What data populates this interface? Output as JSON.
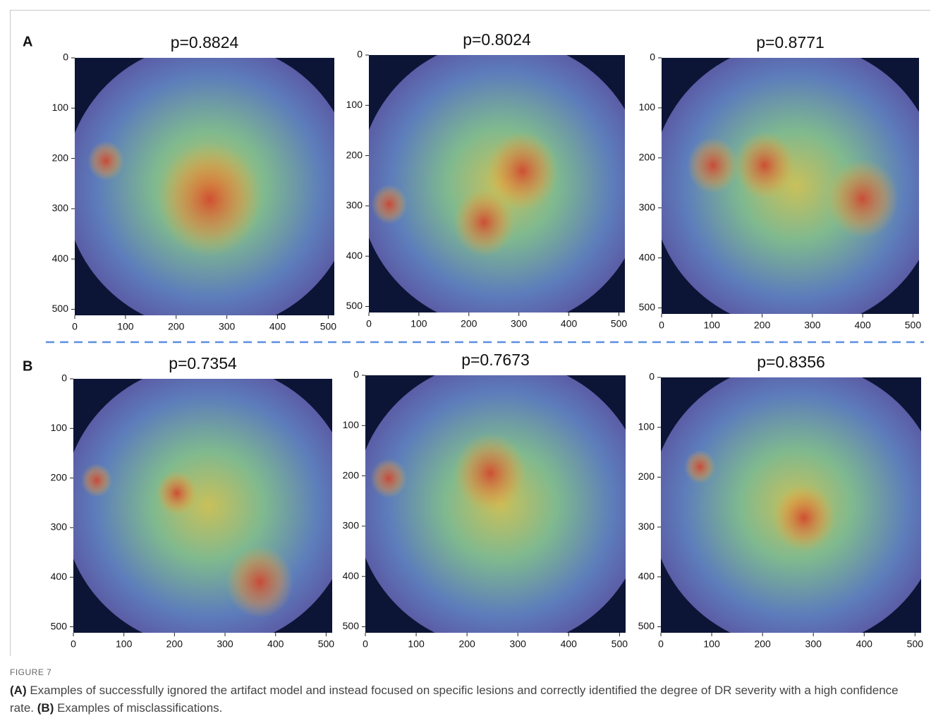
{
  "figure": {
    "panels": [
      {
        "label": "A",
        "plots": [
          {
            "title": "p=0.8824",
            "xlim": [
              0,
              512
            ],
            "ylim": [
              0,
              512
            ],
            "xticks": [
              0,
              100,
              200,
              300,
              400,
              500
            ],
            "yticks": [
              0,
              100,
              200,
              300,
              400,
              500
            ]
          },
          {
            "title": "p=0.8024",
            "xlim": [
              0,
              512
            ],
            "ylim": [
              0,
              512
            ],
            "xticks": [
              0,
              100,
              200,
              300,
              400,
              500
            ],
            "yticks": [
              0,
              100,
              200,
              300,
              400,
              500
            ]
          },
          {
            "title": "p=0.8771",
            "xlim": [
              0,
              512
            ],
            "ylim": [
              0,
              512
            ],
            "xticks": [
              0,
              100,
              200,
              300,
              400,
              500
            ],
            "yticks": [
              0,
              100,
              200,
              300,
              400,
              500
            ]
          }
        ]
      },
      {
        "label": "B",
        "plots": [
          {
            "title": "p=0.7354",
            "xlim": [
              0,
              512
            ],
            "ylim": [
              0,
              512
            ],
            "xticks": [
              0,
              100,
              200,
              300,
              400,
              500
            ],
            "yticks": [
              0,
              100,
              200,
              300,
              400,
              500
            ]
          },
          {
            "title": "p=0.7673",
            "xlim": [
              0,
              512
            ],
            "ylim": [
              0,
              512
            ],
            "xticks": [
              0,
              100,
              200,
              300,
              400,
              500
            ],
            "yticks": [
              0,
              100,
              200,
              300,
              400,
              500
            ]
          },
          {
            "title": "p=0.8356",
            "xlim": [
              0,
              512
            ],
            "ylim": [
              0,
              512
            ],
            "xticks": [
              0,
              100,
              200,
              300,
              400,
              500
            ],
            "yticks": [
              0,
              100,
              200,
              300,
              400,
              500
            ]
          }
        ]
      }
    ]
  },
  "caption": {
    "label": "FIGURE 7",
    "parts": [
      {
        "label": "(A)",
        "text": " Examples of successfully ignored the artifact model and instead focused on specific lesions and correctly identified the degree of DR severity with a high confidence rate. "
      },
      {
        "label": "(B)",
        "text": " Examples of misclassifications."
      }
    ]
  }
}
